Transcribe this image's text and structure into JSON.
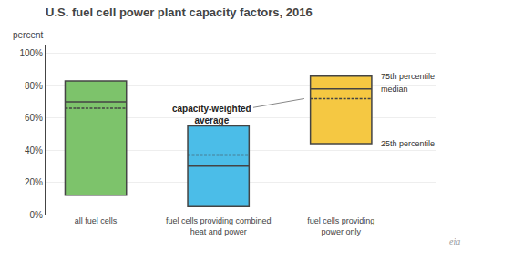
{
  "chart_data": {
    "type": "box",
    "title": "U.S. fuel cell power plant capacity factors, 2016",
    "ylabel": "percent",
    "categories": [
      "all fuel cells",
      "fuel cells providing combined\nheat and power",
      "fuel cells providing\npower only"
    ],
    "series": [
      {
        "name": "25th percentile",
        "values": [
          0.12,
          0.05,
          0.44
        ]
      },
      {
        "name": "median",
        "values": [
          0.7,
          0.3,
          0.78
        ]
      },
      {
        "name": "75th percentile",
        "values": [
          0.83,
          0.55,
          0.86
        ]
      },
      {
        "name": "capacity-weighted\naverage",
        "values": [
          0.66,
          0.37,
          0.72
        ]
      }
    ],
    "colors": [
      "#7dc36b",
      "#4bbde8",
      "#f5c842"
    ],
    "ylim": [
      0,
      1.05
    ],
    "yticks": [
      {
        "value": 0.0,
        "label": "0%"
      },
      {
        "value": 0.2,
        "label": "20%"
      },
      {
        "value": 0.4,
        "label": "40%"
      },
      {
        "value": 0.6,
        "label": "60%"
      },
      {
        "value": 0.8,
        "label": "80%"
      },
      {
        "value": 1.0,
        "label": "100%"
      }
    ],
    "grid": true,
    "annotations": [
      "eia"
    ]
  }
}
